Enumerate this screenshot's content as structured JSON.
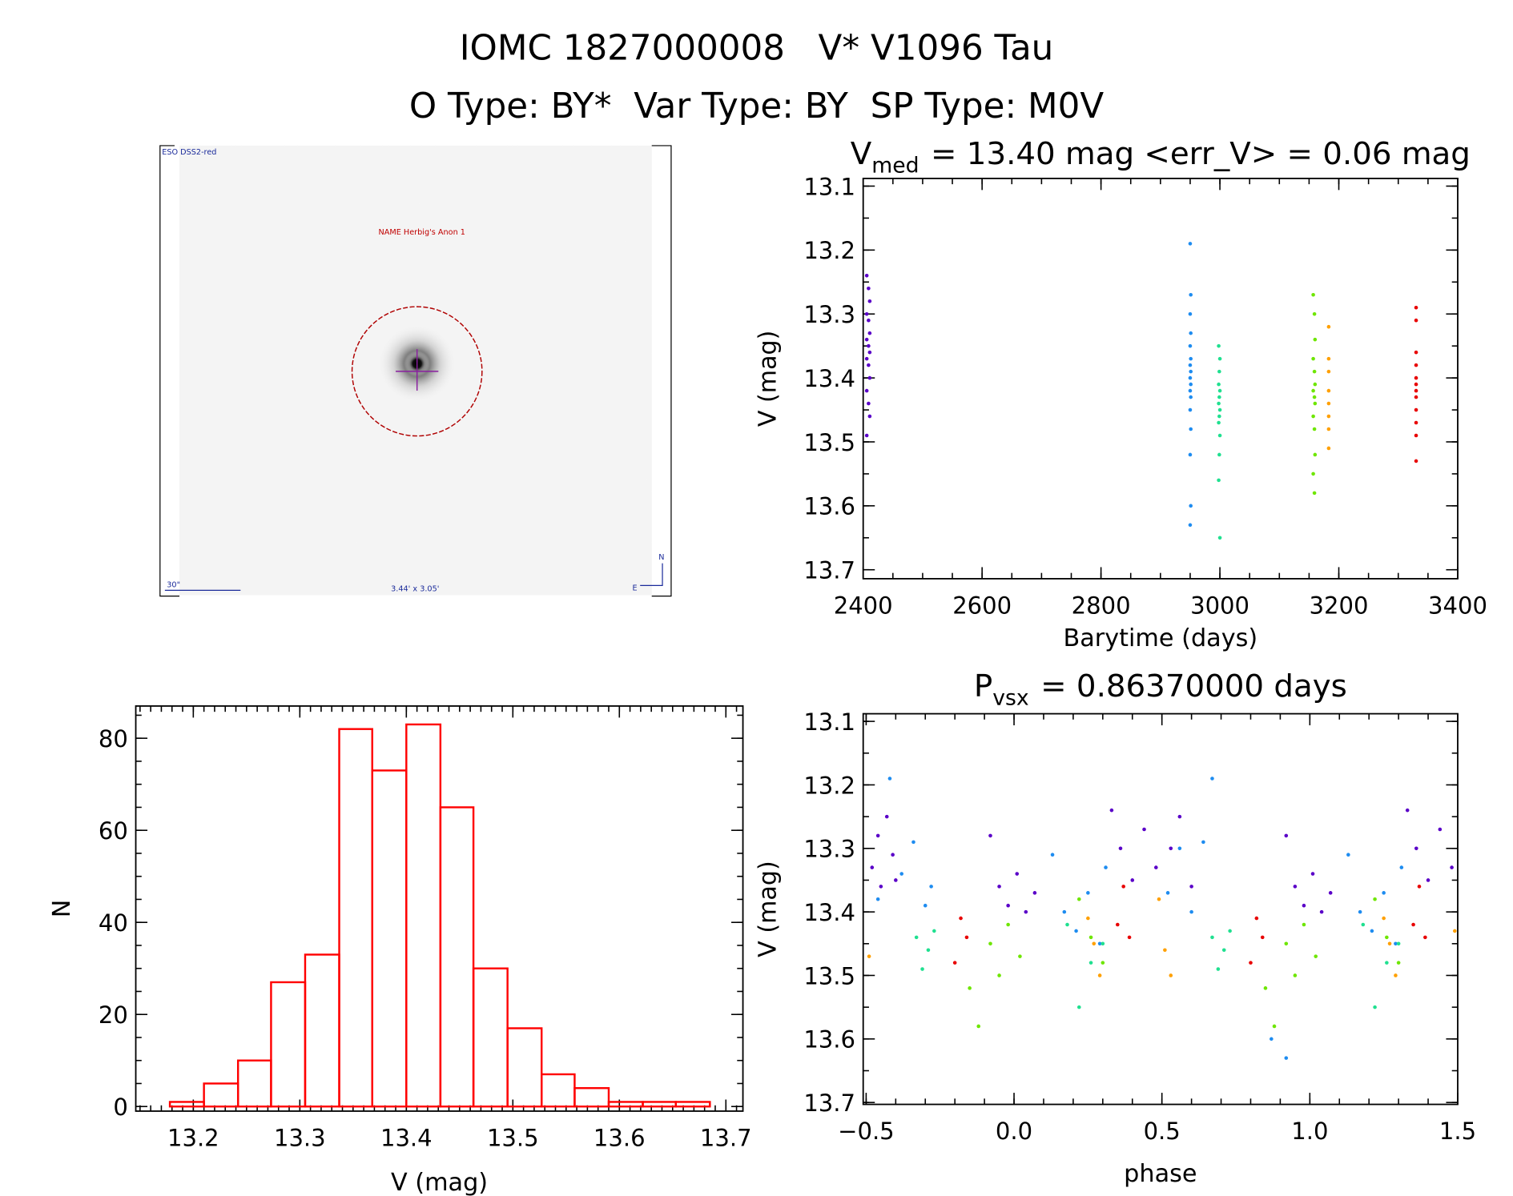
{
  "header": {
    "title": "IOMC 1827000008   V* V1096 Tau",
    "subtitle": "O Type: BY*  Var Type: BY  SP Type: M0V"
  },
  "finder": {
    "survey": "ESO DSS2-red",
    "object": "NAME Herbig's Anon 1",
    "scale": "30\"",
    "field": "3.44' x 3.05'",
    "north": "N",
    "east": "E"
  },
  "chart_data": [
    {
      "type": "scatter",
      "title": {
        "main": "V",
        "subscript": "med",
        "rest": "= 13.40 mag <err_V> = 0.06 mag"
      },
      "xlabel": "Barytime (days)",
      "ylabel": "V (mag)",
      "xlim": [
        2400,
        3400
      ],
      "ylim": [
        13.714,
        13.088
      ],
      "xticks": [
        2400,
        2600,
        2800,
        3000,
        3200,
        3400
      ],
      "yticks": [
        13.1,
        13.2,
        13.3,
        13.4,
        13.5,
        13.6,
        13.7
      ],
      "series": [
        {
          "color": "#5a00c8",
          "x": [
            2406,
            2409,
            2411,
            2406,
            2409,
            2411,
            2406,
            2409,
            2411,
            2406,
            2409,
            2411,
            2406,
            2409,
            2411,
            2406
          ],
          "values": [
            13.24,
            13.26,
            13.28,
            13.3,
            13.31,
            13.33,
            13.34,
            13.35,
            13.36,
            13.37,
            13.38,
            13.4,
            13.42,
            13.44,
            13.46,
            13.49
          ]
        },
        {
          "color": "#1e8cf0",
          "x": [
            2950,
            2951,
            2950,
            2951,
            2950,
            2951,
            2950,
            2951,
            2950,
            2951,
            2950,
            2951,
            2950,
            2951,
            2950,
            2951,
            2950
          ],
          "values": [
            13.19,
            13.27,
            13.3,
            13.33,
            13.35,
            13.37,
            13.38,
            13.39,
            13.4,
            13.41,
            13.42,
            13.43,
            13.45,
            13.48,
            13.52,
            13.6,
            13.63
          ]
        },
        {
          "color": "#20e090",
          "x": [
            2998,
            3000,
            2999,
            2998,
            3000,
            2999,
            2998,
            3000,
            2999,
            2998,
            3000,
            2999,
            2998,
            3000
          ],
          "values": [
            13.35,
            13.37,
            13.39,
            13.41,
            13.42,
            13.43,
            13.44,
            13.45,
            13.46,
            13.47,
            13.49,
            13.52,
            13.56,
            13.65
          ]
        },
        {
          "color": "#6ee600",
          "x": [
            3157,
            3159,
            3160,
            3157,
            3159,
            3160,
            3157,
            3159,
            3160,
            3157,
            3159,
            3160,
            3157,
            3159
          ],
          "values": [
            13.27,
            13.3,
            13.34,
            13.37,
            13.39,
            13.41,
            13.42,
            13.43,
            13.44,
            13.46,
            13.48,
            13.52,
            13.55,
            13.58
          ]
        },
        {
          "color": "#ffa000",
          "x": [
            3183,
            3183,
            3183,
            3183,
            3183,
            3183,
            3183,
            3183
          ],
          "values": [
            13.32,
            13.37,
            13.39,
            13.42,
            13.44,
            13.46,
            13.48,
            13.51
          ]
        },
        {
          "color": "#e80000",
          "x": [
            3330,
            3330,
            3330,
            3330,
            3330,
            3330,
            3330,
            3330,
            3330,
            3330,
            3330,
            3330
          ],
          "values": [
            13.29,
            13.31,
            13.36,
            13.38,
            13.4,
            13.41,
            13.42,
            13.43,
            13.45,
            13.47,
            13.49,
            13.53
          ]
        }
      ]
    },
    {
      "type": "scatter",
      "title": {
        "main": "P",
        "subscript": "vsx",
        "rest": "= 0.86370000 days"
      },
      "xlabel": "phase",
      "ylabel": "V (mag)",
      "xlim": [
        -0.51,
        1.5
      ],
      "ylim": [
        13.703,
        13.088
      ],
      "xticks": [
        {
          "value": -0.5,
          "label": "−0.5"
        },
        {
          "value": 0,
          "label": "0.0"
        },
        0.5,
        {
          "value": 1,
          "label": "1.0"
        },
        1.5
      ],
      "yticks": [
        13.1,
        13.2,
        13.3,
        13.4,
        13.5,
        13.6,
        13.7
      ],
      "series": [
        {
          "color": "#5a00c8",
          "x": [
            -0.48,
            -0.46,
            -0.45,
            -0.43,
            -0.41,
            -0.4,
            -0.08,
            -0.05,
            -0.02,
            0.01,
            0.04,
            0.07,
            0.33,
            0.36,
            0.4,
            0.44,
            0.48,
            0.53,
            0.56,
            0.6,
            0.92,
            0.95,
            0.98,
            1.01,
            1.04,
            1.07,
            1.33,
            1.36,
            1.4,
            1.44,
            1.48
          ],
          "values": [
            13.33,
            13.28,
            13.36,
            13.25,
            13.31,
            13.35,
            13.28,
            13.36,
            13.39,
            13.34,
            13.4,
            13.37,
            13.24,
            13.3,
            13.35,
            13.27,
            13.33,
            13.3,
            13.25,
            13.36,
            13.28,
            13.36,
            13.39,
            13.34,
            13.4,
            13.37,
            13.24,
            13.3,
            13.35,
            13.27,
            13.33
          ]
        },
        {
          "color": "#1e8cf0",
          "x": [
            -0.46,
            -0.42,
            -0.38,
            -0.34,
            -0.3,
            -0.28,
            0.13,
            0.17,
            0.21,
            0.25,
            0.29,
            0.31,
            0.52,
            0.56,
            0.6,
            0.64,
            0.67,
            0.87,
            0.92,
            1.13,
            1.17,
            1.21,
            1.25,
            1.29,
            1.31
          ],
          "values": [
            13.38,
            13.19,
            13.34,
            13.29,
            13.39,
            13.36,
            13.31,
            13.4,
            13.43,
            13.37,
            13.45,
            13.33,
            13.37,
            13.3,
            13.4,
            13.29,
            13.19,
            13.6,
            13.63,
            13.31,
            13.4,
            13.43,
            13.37,
            13.45,
            13.33
          ]
        },
        {
          "color": "#20e090",
          "x": [
            -0.33,
            -0.31,
            -0.29,
            -0.27,
            0.18,
            0.22,
            0.26,
            0.3,
            0.67,
            0.69,
            0.71,
            0.73,
            1.18,
            1.22,
            1.26,
            1.3
          ],
          "values": [
            13.44,
            13.49,
            13.46,
            13.43,
            13.42,
            13.55,
            13.48,
            13.45,
            13.44,
            13.49,
            13.46,
            13.43,
            13.42,
            13.55,
            13.48,
            13.45
          ]
        },
        {
          "color": "#6ee600",
          "x": [
            -0.15,
            -0.12,
            -0.08,
            -0.05,
            -0.02,
            0.02,
            0.22,
            0.26,
            0.3,
            0.85,
            0.88,
            0.92,
            0.95,
            0.98,
            1.02,
            1.22,
            1.26,
            1.3
          ],
          "values": [
            13.52,
            13.58,
            13.45,
            13.5,
            13.42,
            13.47,
            13.38,
            13.44,
            13.48,
            13.52,
            13.58,
            13.45,
            13.5,
            13.42,
            13.47,
            13.38,
            13.44,
            13.48
          ]
        },
        {
          "color": "#ffa000",
          "x": [
            -0.49,
            0.25,
            0.27,
            0.29,
            0.49,
            0.51,
            0.53,
            1.25,
            1.27,
            1.29,
            1.49
          ],
          "values": [
            13.47,
            13.41,
            13.45,
            13.5,
            13.38,
            13.46,
            13.5,
            13.41,
            13.45,
            13.5,
            13.43
          ]
        },
        {
          "color": "#e80000",
          "x": [
            -0.2,
            -0.18,
            -0.16,
            0.35,
            0.37,
            0.39,
            0.8,
            0.82,
            0.84,
            1.35,
            1.37,
            1.39
          ],
          "values": [
            13.48,
            13.41,
            13.44,
            13.42,
            13.36,
            13.44,
            13.48,
            13.41,
            13.44,
            13.42,
            13.36,
            13.44
          ]
        }
      ]
    },
    {
      "type": "histogram",
      "xlabel": "V (mag)",
      "ylabel": "N",
      "color": "#ff0000",
      "xlim": [
        13.146,
        13.716
      ],
      "ylim": [
        -1,
        87
      ],
      "xticks": [
        13.2,
        13.3,
        13.4,
        13.5,
        13.6,
        13.7
      ],
      "yticks": [
        0,
        20,
        40,
        60,
        80
      ],
      "bins": [
        13.178,
        13.21,
        13.242,
        13.273,
        13.305,
        13.337,
        13.368,
        13.4,
        13.432,
        13.463,
        13.495,
        13.527,
        13.558,
        13.59,
        13.622,
        13.653,
        13.685
      ],
      "values": [
        1,
        5,
        10,
        27,
        33,
        82,
        73,
        83,
        65,
        30,
        17,
        7,
        4,
        1,
        1,
        1
      ]
    }
  ]
}
